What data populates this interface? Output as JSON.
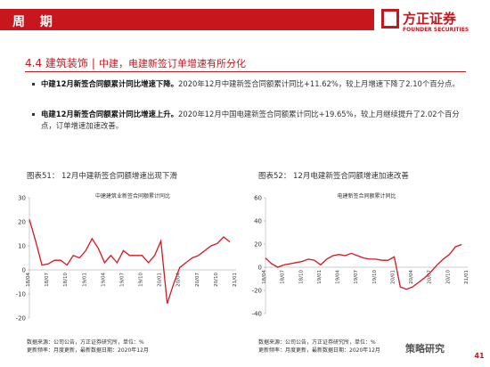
{
  "header": {
    "title": "周 期",
    "logo_cn": "方正证券",
    "logo_en": "FOUNDER SECURITIES"
  },
  "section": {
    "number_title": "4.4 建筑装饰",
    "separator": "|",
    "subtitle": "中建，电建新签订单增速有所分化"
  },
  "bullets": [
    {
      "bold": "中建12月新签合同额累计同比增速下降。",
      "text": "2020年12月中建新签合同额累计同比+11.62%，较上月增速下降了2.10个百分点。"
    },
    {
      "bold": "电建12月新签合同额累计同比增速上升。",
      "text": "2020年12月中国电建新签合同额累计同比+19.65%，较上月继续提升了2.02个百分点，订单增速加速改善。"
    }
  ],
  "chart_data": [
    {
      "type": "line",
      "caption": "图表51：   12月中建新签合同额增速出现下滑",
      "title": "中建建筑业新签合同额累计同比",
      "categories": [
        "18/04",
        null,
        null,
        "18/07",
        null,
        null,
        "18/10",
        null,
        null,
        "19/01",
        null,
        null,
        "19/04",
        null,
        null,
        "19/07",
        null,
        null,
        "19/10",
        null,
        null,
        "20/01",
        null,
        null,
        "20/04",
        null,
        null,
        "20/07",
        null,
        null,
        "20/10",
        null,
        null,
        "21/01"
      ],
      "series": [
        {
          "name": "中建建筑业新签合同额累计同比",
          "color": "#d7161d",
          "values": [
            21,
            12,
            2,
            2.5,
            4,
            4,
            2,
            6,
            5,
            8,
            13,
            9,
            3,
            6,
            3,
            8,
            6,
            6,
            6,
            3,
            6,
            12,
            -14,
            -6,
            1,
            3,
            5,
            6,
            8,
            10,
            11,
            13.72,
            11.62,
            null
          ]
        }
      ],
      "ylim": [
        -20,
        30
      ],
      "yticks": [
        -20,
        -10,
        0,
        10,
        20,
        30
      ]
    },
    {
      "type": "line",
      "caption": "图表52：  12月电建新签合同额增速加速改善",
      "title": "电建新签合同额累计同比",
      "categories": [
        "18/04",
        null,
        null,
        "18/07",
        null,
        null,
        "18/10",
        null,
        null,
        "19/01",
        null,
        null,
        "19/04",
        null,
        null,
        "19/07",
        null,
        null,
        "19/10",
        null,
        null,
        "20/01",
        null,
        null,
        "20/04",
        null,
        null,
        "20/07",
        null,
        null,
        "20/10",
        null,
        null,
        "21/01"
      ],
      "series": [
        {
          "name": "电建新签合同额累计同比",
          "color": "#d7161d",
          "values": [
            8,
            3,
            0,
            2,
            3,
            4,
            5,
            7,
            6,
            2,
            7,
            10,
            11,
            10,
            12,
            10,
            8,
            7,
            7,
            6,
            6,
            9,
            -17,
            -19,
            -17,
            -13,
            -9,
            -4,
            2,
            7,
            11,
            17.63,
            19.65,
            null
          ]
        }
      ],
      "ylim": [
        -40,
        60
      ],
      "yticks": [
        -40,
        -20,
        0,
        20,
        40,
        60
      ]
    }
  ],
  "footer": [
    {
      "source": "数据来源：公司公告，方正证券研究所，单位：%",
      "update": "更新频率：月度更新，最新数据日期：2020年12月"
    },
    {
      "source": "数据来源：公司公告，方正证券研究所，单位：%",
      "update": "更新频率：月度更新，最新数据日期：2020年12月"
    }
  ],
  "watermark": "策略研究",
  "page_number": "41"
}
